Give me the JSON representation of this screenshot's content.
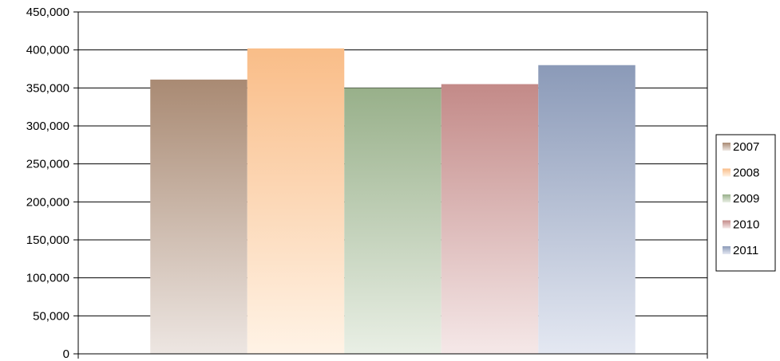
{
  "chart_data": {
    "type": "bar",
    "title": "",
    "xlabel": "",
    "ylabel": "",
    "ylim": [
      0,
      450000
    ],
    "yticks": [
      0,
      50000,
      100000,
      150000,
      200000,
      250000,
      300000,
      350000,
      400000,
      450000
    ],
    "ytick_labels": [
      "0",
      "50,000",
      "100,000",
      "150,000",
      "200,000",
      "250,000",
      "300,000",
      "350,000",
      "400,000",
      "450,000"
    ],
    "grid": true,
    "legend_position": "right",
    "series": [
      {
        "name": "2007",
        "value": 361000,
        "color": "#a98a73",
        "light": "#ede6e2"
      },
      {
        "name": "2008",
        "value": 402000,
        "color": "#f9bd88",
        "light": "#fff3e6"
      },
      {
        "name": "2009",
        "value": 350000,
        "color": "#98b08a",
        "light": "#e9efe5"
      },
      {
        "name": "2010",
        "value": 355000,
        "color": "#c38a88",
        "light": "#f5e8e8"
      },
      {
        "name": "2011",
        "value": 380000,
        "color": "#8b9ab8",
        "light": "#e4e8f2"
      }
    ]
  }
}
